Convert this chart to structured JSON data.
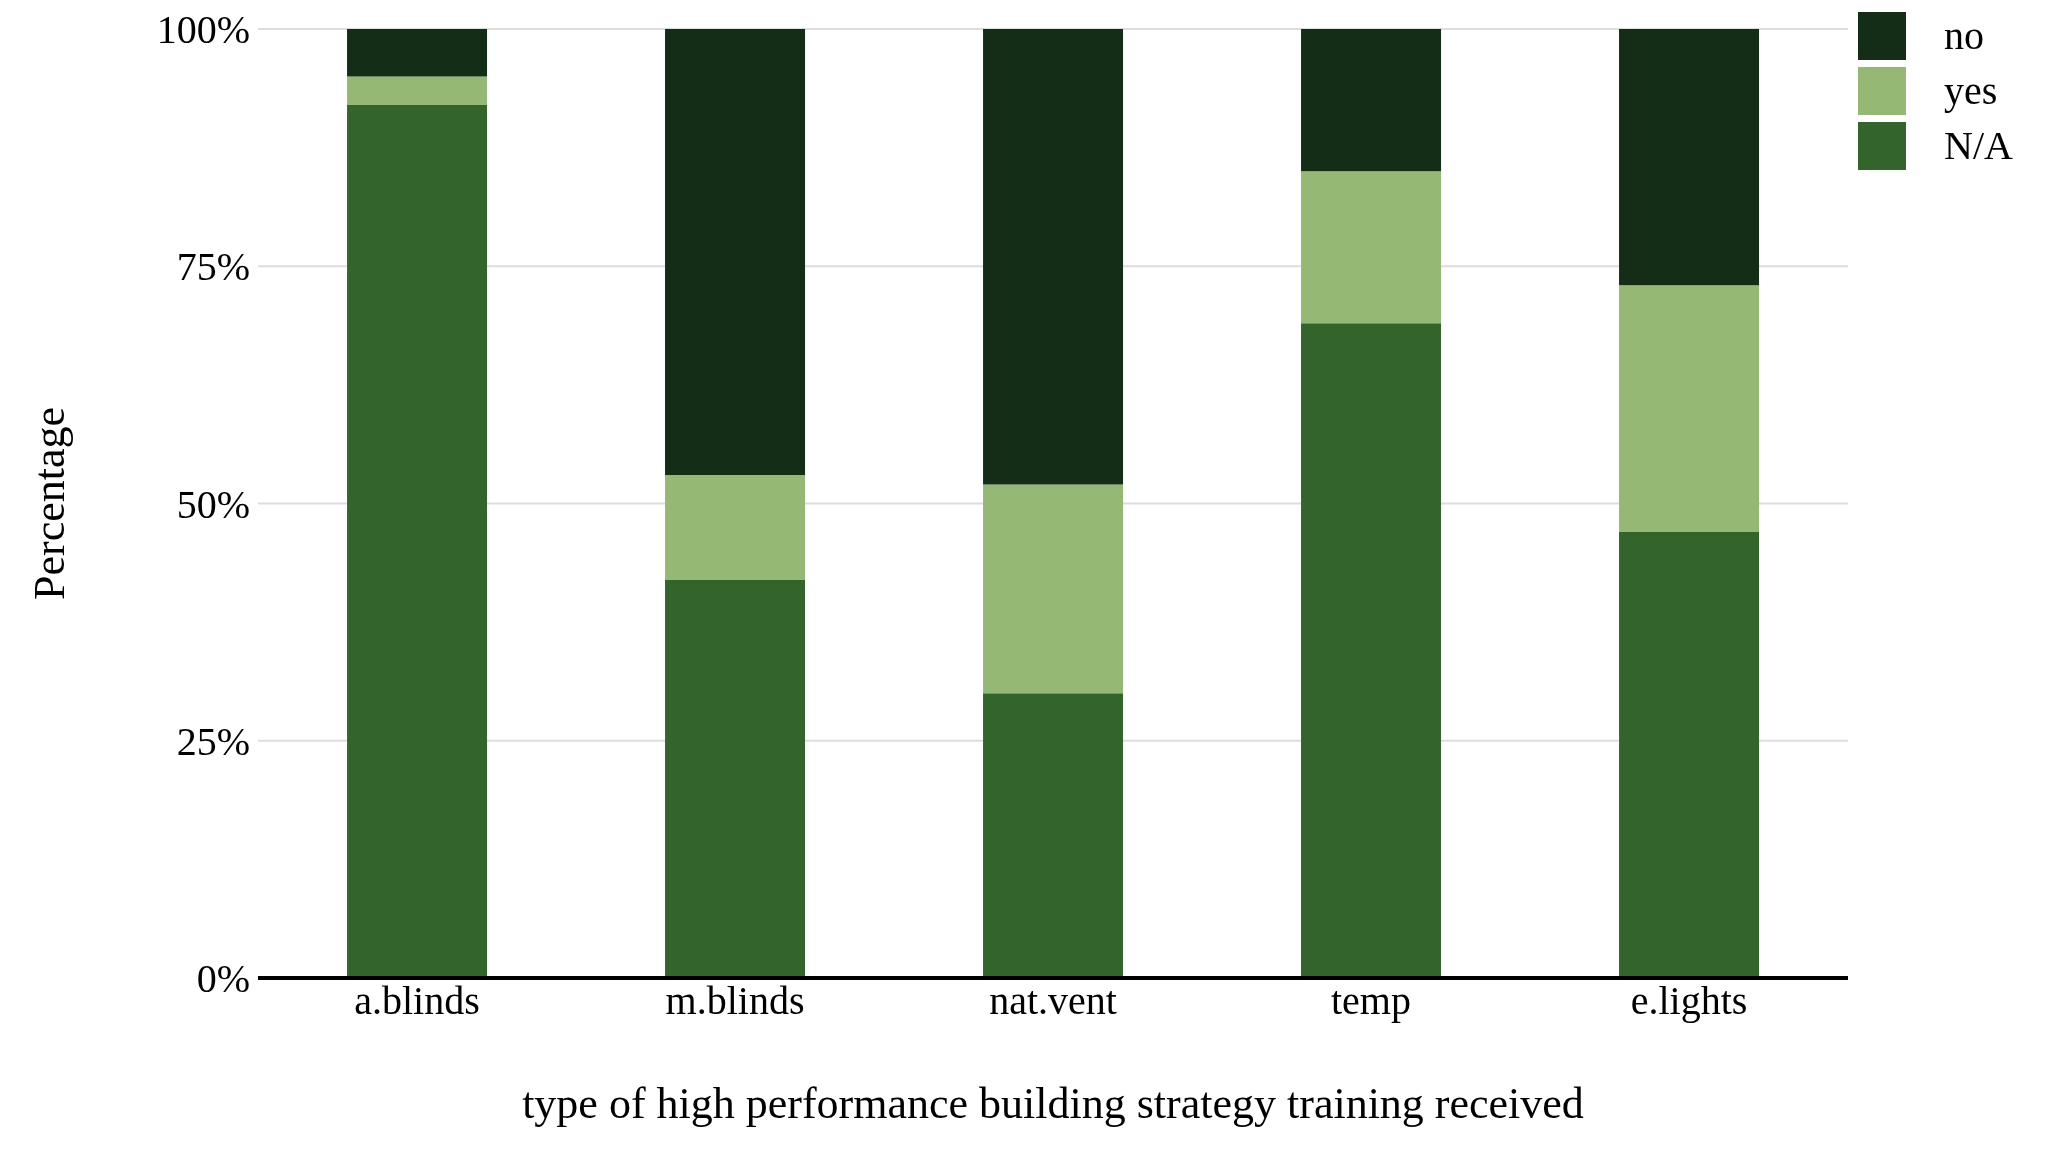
{
  "chart_data": {
    "type": "bar",
    "stacked": true,
    "xlabel": "type of high performance building strategy training received",
    "ylabel": "Percentage",
    "categories": [
      "a.blinds",
      "m.blinds",
      "nat.vent",
      "temp",
      "e.lights"
    ],
    "series": [
      {
        "name": "N/A",
        "color": "#32642c",
        "values": [
          92,
          42,
          30,
          69,
          47
        ]
      },
      {
        "name": "yes",
        "color": "#95b975",
        "values": [
          3,
          11,
          22,
          16,
          26
        ]
      },
      {
        "name": "no",
        "color": "#132d17",
        "values": [
          5,
          47,
          48,
          15,
          27
        ]
      }
    ],
    "ylim": [
      0,
      100
    ],
    "yticks": [
      {
        "value": 0,
        "label": "0%"
      },
      {
        "value": 25,
        "label": "25%"
      },
      {
        "value": 50,
        "label": "50%"
      },
      {
        "value": 75,
        "label": "75%"
      },
      {
        "value": 100,
        "label": "100%"
      }
    ],
    "grid": "y",
    "legend": "top right"
  }
}
